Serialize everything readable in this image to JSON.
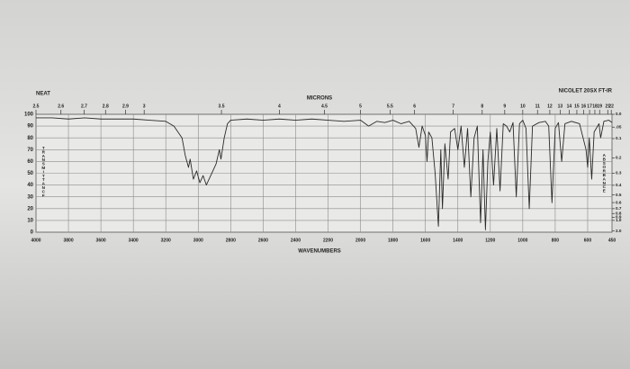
{
  "chart_data": {
    "type": "line",
    "title": "NEAT",
    "subtitle": "NICOLET 20SX FT-IR",
    "x_label": "WAVENUMBERS",
    "x2_label": "MICRONS",
    "y_label": "TRANSMITTANCE",
    "y2_label": "ABSORBANCE",
    "color": "#2a2a2a",
    "grid": true,
    "xlim": [
      4000,
      450
    ],
    "xticks": [
      4000,
      3800,
      3600,
      3400,
      3200,
      3000,
      2800,
      2600,
      2400,
      2200,
      2000,
      1800,
      1600,
      1400,
      1200,
      1000,
      800,
      600,
      450
    ],
    "x2ticks": [
      2.5,
      2.6,
      2.7,
      2.8,
      2.9,
      3,
      3.5,
      4,
      4.5,
      5,
      5.5,
      6,
      7,
      8,
      9,
      10,
      11,
      12,
      13,
      14,
      15,
      16,
      17,
      18,
      19,
      21,
      22
    ],
    "ylim": [
      0,
      100
    ],
    "yticks": [
      0,
      10,
      20,
      30,
      40,
      50,
      60,
      70,
      80,
      90,
      100
    ],
    "y2scale": "absorbance",
    "y2lim": [
      0,
      2
    ],
    "y2ticks": [
      {
        "value": 0,
        "label": "0.0"
      },
      {
        "value": 0.05,
        "label": ".05"
      },
      0.1,
      0.2,
      0.3,
      0.4,
      0.5,
      0.6,
      0.7,
      0.8,
      0.9,
      {
        "value": 1,
        "label": "1.0"
      },
      {
        "value": 2,
        "label": "2.0"
      }
    ],
    "x": [
      4000,
      3900,
      3800,
      3700,
      3600,
      3500,
      3400,
      3300,
      3200,
      3150,
      3100,
      3080,
      3060,
      3050,
      3030,
      3010,
      2990,
      2970,
      2950,
      2930,
      2910,
      2890,
      2870,
      2860,
      2840,
      2820,
      2800,
      2700,
      2600,
      2500,
      2400,
      2300,
      2200,
      2100,
      2000,
      1950,
      1900,
      1850,
      1800,
      1750,
      1700,
      1660,
      1640,
      1620,
      1600,
      1590,
      1580,
      1560,
      1540,
      1520,
      1505,
      1495,
      1480,
      1460,
      1445,
      1420,
      1400,
      1380,
      1360,
      1340,
      1320,
      1300,
      1280,
      1260,
      1245,
      1230,
      1215,
      1200,
      1180,
      1160,
      1140,
      1120,
      1100,
      1080,
      1060,
      1040,
      1020,
      1000,
      980,
      960,
      940,
      900,
      860,
      840,
      820,
      800,
      780,
      760,
      740,
      700,
      650,
      610,
      600,
      590,
      575,
      560,
      530,
      520,
      500,
      470,
      450
    ],
    "values": [
      97,
      97,
      96,
      97,
      96,
      96,
      96,
      95,
      94,
      90,
      80,
      65,
      55,
      62,
      45,
      52,
      42,
      48,
      40,
      46,
      52,
      58,
      70,
      62,
      80,
      92,
      95,
      96,
      95,
      96,
      95,
      96,
      95,
      94,
      95,
      90,
      94,
      93,
      95,
      92,
      94,
      88,
      72,
      90,
      82,
      60,
      85,
      80,
      50,
      5,
      70,
      20,
      75,
      45,
      85,
      88,
      70,
      90,
      55,
      88,
      30,
      80,
      90,
      8,
      70,
      2,
      60,
      85,
      40,
      88,
      35,
      92,
      90,
      85,
      93,
      30,
      92,
      95,
      88,
      20,
      90,
      93,
      94,
      90,
      25,
      88,
      93,
      60,
      92,
      94,
      92,
      70,
      55,
      80,
      45,
      85,
      92,
      80,
      94,
      95,
      93
    ]
  }
}
